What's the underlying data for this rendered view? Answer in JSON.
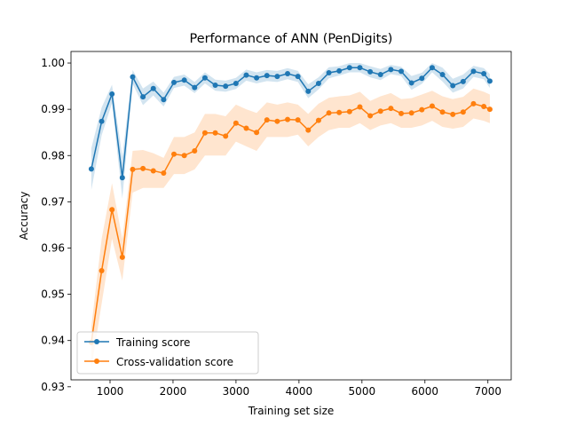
{
  "chart_data": {
    "type": "line",
    "title": "Performance of ANN (PenDigits)",
    "xlabel": "Training set size",
    "ylabel": "Accuracy",
    "xlim": [
      380,
      7370
    ],
    "ylim": [
      0.9315,
      1.0025
    ],
    "x_ticks": [
      1000,
      2000,
      3000,
      4000,
      5000,
      6000,
      7000
    ],
    "x_tick_labels": [
      "1000",
      "2000",
      "3000",
      "4000",
      "5000",
      "6000",
      "7000"
    ],
    "y_ticks": [
      0.93,
      0.94,
      0.95,
      0.96,
      0.97,
      0.98,
      0.99,
      1.0
    ],
    "y_tick_labels": [
      "0.93",
      "0.94",
      "0.95",
      "0.96",
      "0.97",
      "0.98",
      "0.99",
      "1.00"
    ],
    "grid": false,
    "legend_position": "lower-left",
    "x": [
      703,
      867,
      1031,
      1195,
      1359,
      1523,
      1687,
      1851,
      2015,
      2179,
      2343,
      2507,
      2671,
      2835,
      2999,
      3163,
      3327,
      3491,
      3655,
      3819,
      3983,
      4147,
      4311,
      4475,
      4639,
      4803,
      4967,
      5131,
      5295,
      5459,
      5623,
      5787,
      5951,
      6115,
      6279,
      6443,
      6607,
      6771,
      6935,
      7031
    ],
    "series": [
      {
        "name": "Training score",
        "color": "#1f77b4",
        "values": [
          0.9771,
          0.9874,
          0.9933,
          0.9752,
          0.997,
          0.9927,
          0.9945,
          0.9921,
          0.9958,
          0.9963,
          0.9947,
          0.9968,
          0.9952,
          0.995,
          0.9956,
          0.9974,
          0.9968,
          0.9973,
          0.9971,
          0.9977,
          0.9971,
          0.9939,
          0.9956,
          0.9979,
          0.9983,
          0.999,
          0.999,
          0.9981,
          0.9975,
          0.9986,
          0.9982,
          0.9957,
          0.9967,
          0.999,
          0.9975,
          0.9951,
          0.996,
          0.9982,
          0.9977,
          0.9961
        ],
        "band": [
          0.0045,
          0.003,
          0.002,
          0.0045,
          0.0015,
          0.0018,
          0.0015,
          0.0015,
          0.0012,
          0.0012,
          0.0012,
          0.0012,
          0.0012,
          0.0012,
          0.0012,
          0.0012,
          0.0012,
          0.0012,
          0.0012,
          0.0012,
          0.0012,
          0.0015,
          0.0013,
          0.0012,
          0.001,
          0.001,
          0.001,
          0.0012,
          0.0012,
          0.001,
          0.001,
          0.0015,
          0.0012,
          0.001,
          0.0015,
          0.0015,
          0.0015,
          0.0012,
          0.0012,
          0.0015
        ]
      },
      {
        "name": "Cross-validation score",
        "color": "#ff7f0e",
        "values": [
          0.9396,
          0.9551,
          0.9683,
          0.958,
          0.977,
          0.9772,
          0.9767,
          0.9762,
          0.9803,
          0.98,
          0.981,
          0.9849,
          0.9849,
          0.9842,
          0.987,
          0.9859,
          0.985,
          0.9877,
          0.9874,
          0.9878,
          0.9877,
          0.9855,
          0.9876,
          0.9892,
          0.9893,
          0.9895,
          0.9905,
          0.9886,
          0.9896,
          0.9902,
          0.9891,
          0.9892,
          0.9899,
          0.9907,
          0.9894,
          0.9889,
          0.9894,
          0.9912,
          0.9906,
          0.99
        ]
      }
    ],
    "cv_band_lower": [
      0.934,
      0.948,
      0.962,
      0.953,
      0.972,
      0.973,
      0.973,
      0.973,
      0.976,
      0.976,
      0.977,
      0.98,
      0.98,
      0.98,
      0.983,
      0.982,
      0.981,
      0.984,
      0.984,
      0.984,
      0.9845,
      0.982,
      0.984,
      0.9855,
      0.986,
      0.986,
      0.987,
      0.9855,
      0.9865,
      0.987,
      0.986,
      0.986,
      0.9865,
      0.9875,
      0.9862,
      0.9858,
      0.9862,
      0.988,
      0.9875,
      0.987
    ],
    "cv_band_upper": [
      0.943,
      0.962,
      0.974,
      0.962,
      0.981,
      0.9812,
      0.9805,
      0.9795,
      0.984,
      0.984,
      0.985,
      0.989,
      0.989,
      0.9885,
      0.991,
      0.99,
      0.9892,
      0.9915,
      0.991,
      0.9915,
      0.991,
      0.989,
      0.9912,
      0.9925,
      0.9928,
      0.993,
      0.9938,
      0.9918,
      0.9928,
      0.9935,
      0.9922,
      0.9924,
      0.9932,
      0.994,
      0.9928,
      0.9922,
      0.9927,
      0.9945,
      0.9938,
      0.9932
    ]
  }
}
